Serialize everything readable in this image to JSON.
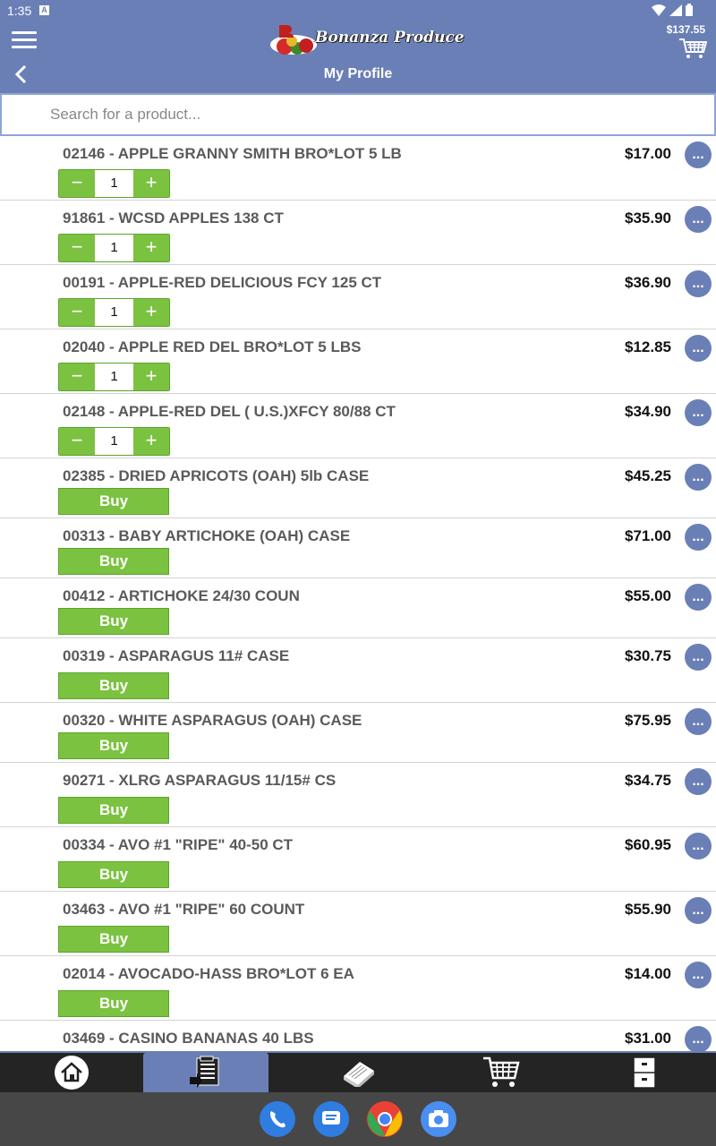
{
  "status_bar": {
    "time": "1:35",
    "notification_letter": "A"
  },
  "header": {
    "brand": "Bonanza Produce",
    "cart_total": "$137.55",
    "title": "My Profile"
  },
  "search": {
    "placeholder": "Search for a product..."
  },
  "products": [
    {
      "code_name": "02146 - APPLE GRANNY SMITH BRO*LOT 5 LB",
      "price": "$17.00",
      "mode": "qty",
      "qty": "1"
    },
    {
      "code_name": "91861 - WCSD APPLES 138 CT",
      "price": "$35.90",
      "mode": "qty",
      "qty": "1"
    },
    {
      "code_name": "00191 - APPLE-RED DELICIOUS FCY 125 CT",
      "price": "$36.90",
      "mode": "qty",
      "qty": "1"
    },
    {
      "code_name": "02040 - APPLE RED DEL BRO*LOT 5 LBS",
      "price": "$12.85",
      "mode": "qty",
      "qty": "1"
    },
    {
      "code_name": "02148 - APPLE-RED DEL ( U.S.)XFCY 80/88 CT",
      "price": "$34.90",
      "mode": "qty",
      "qty": "1"
    },
    {
      "code_name": "02385 - DRIED APRICOTS (OAH) 5lb CASE",
      "price": "$45.25",
      "mode": "buy"
    },
    {
      "code_name": "00313 - BABY ARTICHOKE (OAH) CASE",
      "price": "$71.00",
      "mode": "buy"
    },
    {
      "code_name": "00412 - ARTICHOKE 24/30 COUN",
      "price": "$55.00",
      "mode": "buy"
    },
    {
      "code_name": "00319 - ASPARAGUS 11# CASE",
      "price": "$30.75",
      "mode": "buy-tall"
    },
    {
      "code_name": "00320 - WHITE ASPARAGUS (OAH) CASE",
      "price": "$75.95",
      "mode": "buy"
    },
    {
      "code_name": "90271 - XLRG ASPARAGUS 11/15# CS",
      "price": "$34.75",
      "mode": "buy-tall"
    },
    {
      "code_name": "00334 - AVO #1 \"RIPE\" 40-50 CT",
      "price": "$60.95",
      "mode": "buy-tall"
    },
    {
      "code_name": "03463 - AVO #1 \"RIPE\" 60 COUNT",
      "price": "$55.90",
      "mode": "buy-tall"
    },
    {
      "code_name": "02014 - AVOCADO-HASS BRO*LOT 6 EA",
      "price": "$14.00",
      "mode": "buy-tall"
    },
    {
      "code_name": "03469 - CASINO BANANAS 40 LBS",
      "price": "$31.00",
      "mode": "buy-tall"
    }
  ],
  "labels": {
    "buy": "Buy",
    "more": "...",
    "minus": "−",
    "plus": "+"
  },
  "bottom_nav": [
    {
      "name": "home-icon",
      "active": false
    },
    {
      "name": "order-guide-icon",
      "active": true
    },
    {
      "name": "catalog-icon",
      "active": false
    },
    {
      "name": "cart-icon",
      "active": false
    },
    {
      "name": "account-icon",
      "active": false
    }
  ],
  "dock_apps": [
    "phone-icon",
    "messages-icon",
    "chrome-icon",
    "camera-icon"
  ],
  "colors": {
    "header": "#6a7fb6",
    "accent_green": "#7cc241",
    "nav_bg": "#242424",
    "dock_bg": "#474747"
  }
}
